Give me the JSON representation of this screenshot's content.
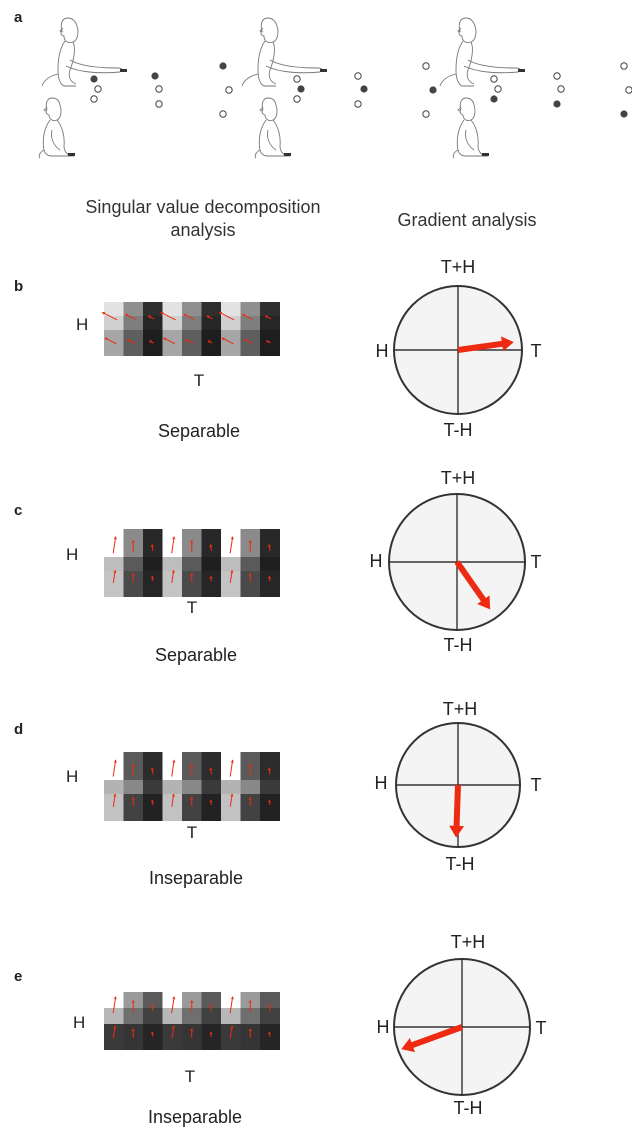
{
  "panel_labels": [
    "a",
    "b",
    "c",
    "d",
    "e"
  ],
  "headers": {
    "svd_line1": "Singular value decomposition",
    "svd_line2": "analysis",
    "gradient": "Gradient analysis"
  },
  "panels": [
    {
      "label": "b",
      "row_label": "H",
      "col_label": "T",
      "caption": "Separable",
      "circle": {
        "top": "T+H",
        "left": "H",
        "right": "T",
        "bottom": "T-H"
      },
      "gradient_angle_deg": 8,
      "gradient_magnitude": 0.88,
      "colors": {
        "top": [
          "#e2e2e2",
          "#8f8f8f",
          "#2f2f2f",
          "#e2e2e2",
          "#8f8f8f",
          "#2f2f2f",
          "#e2e2e2",
          "#8f8f8f",
          "#2f2f2f"
        ],
        "mid": [
          "#d0d0d0",
          "#7e7e7e",
          "#262626",
          "#d0d0d0",
          "#7e7e7e",
          "#262626",
          "#d0d0d0",
          "#7e7e7e",
          "#262626"
        ],
        "bot": [
          "#a6a6a6",
          "#5e5e5e",
          "#1e1e1e",
          "#a6a6a6",
          "#5e5e5e",
          "#1e1e1e",
          "#a6a6a6",
          "#5e5e5e",
          "#1e1e1e"
        ]
      }
    },
    {
      "label": "c",
      "row_label": "H",
      "col_label": "T",
      "caption": "Separable",
      "circle": {
        "top": "T+H",
        "left": "H",
        "right": "T",
        "bottom": "T-H"
      },
      "gradient_angle_deg": -55,
      "gradient_magnitude": 0.85,
      "colors": {
        "top": [
          "#ffffff",
          "#8a8a8a",
          "#282828",
          "#ffffff",
          "#8a8a8a",
          "#282828",
          "#ffffff",
          "#8a8a8a",
          "#282828"
        ],
        "mid": [
          "#bdbdbd",
          "#5a5a5a",
          "#1f1f1f",
          "#bdbdbd",
          "#5a5a5a",
          "#1f1f1f",
          "#bdbdbd",
          "#5a5a5a",
          "#1f1f1f"
        ],
        "bot": [
          "#c4c4c4",
          "#4a4a4a",
          "#262626",
          "#c4c4c4",
          "#4a4a4a",
          "#262626",
          "#c4c4c4",
          "#4a4a4a",
          "#262626"
        ]
      }
    },
    {
      "label": "d",
      "row_label": "H",
      "col_label": "T",
      "caption": "Inseparable",
      "circle": {
        "top": "T+H",
        "left": "H",
        "right": "T",
        "bottom": "T-H"
      },
      "gradient_angle_deg": -92,
      "gradient_magnitude": 0.85,
      "colors": {
        "top": [
          "#ffffff",
          "#5a5a5a",
          "#2c2c2c",
          "#ffffff",
          "#5a5a5a",
          "#2c2c2c",
          "#ffffff",
          "#5a5a5a",
          "#2c2c2c"
        ],
        "mid": [
          "#b3b3b3",
          "#888888",
          "#3a3a3a",
          "#b3b3b3",
          "#888888",
          "#3a3a3a",
          "#b3b3b3",
          "#888888",
          "#3a3a3a"
        ],
        "bot": [
          "#c2c2c2",
          "#424242",
          "#222222",
          "#c2c2c2",
          "#424242",
          "#222222",
          "#c2c2c2",
          "#424242",
          "#222222"
        ]
      }
    },
    {
      "label": "e",
      "row_label": "H",
      "col_label": "T",
      "caption": "Inseparable",
      "circle": {
        "top": "T+H",
        "left": "H",
        "right": "T",
        "bottom": "T-H"
      },
      "gradient_angle_deg": 200,
      "gradient_magnitude": 0.95,
      "colors": {
        "top": [
          "#ffffff",
          "#9a9a9a",
          "#5a5a5a",
          "#ffffff",
          "#9a9a9a",
          "#5a5a5a",
          "#ffffff",
          "#9a9a9a",
          "#5a5a5a"
        ],
        "mid": [
          "#b8b8b8",
          "#6f6f6f",
          "#404040",
          "#b8b8b8",
          "#6f6f6f",
          "#404040",
          "#b8b8b8",
          "#6f6f6f",
          "#404040"
        ],
        "bot": [
          "#3a3a3a",
          "#353535",
          "#252525",
          "#3a3a3a",
          "#353535",
          "#252525",
          "#3a3a3a",
          "#353535",
          "#252525"
        ]
      }
    }
  ],
  "accent_color": "#ee2a12"
}
